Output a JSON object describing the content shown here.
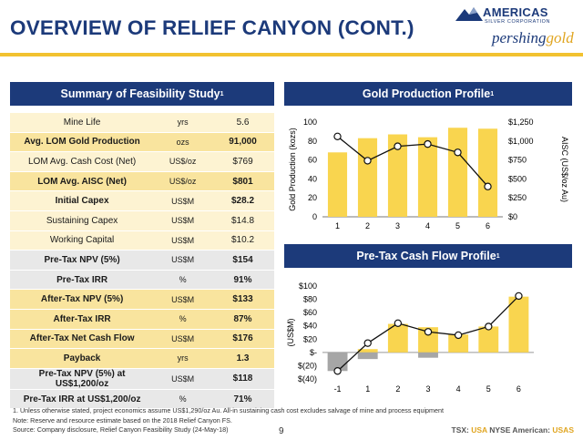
{
  "title": "OVERVIEW OF RELIEF CANYON (CONT.)",
  "logo": {
    "line1": "AMERICAS",
    "line2": "SILVER CORPORATION",
    "brand_a": "pershing",
    "brand_b": "gold"
  },
  "summary": {
    "heading": "Summary of Feasibility Study",
    "heading_sup": "1",
    "rows": [
      {
        "label": "Mine Life",
        "unit": "yrs",
        "value": "5.6"
      },
      {
        "label": "Avg. LOM Gold Production",
        "unit": "ozs",
        "value": "91,000"
      },
      {
        "label": "LOM Avg. Cash Cost (Net)",
        "unit": "US$/oz",
        "value": "$769"
      },
      {
        "label": "LOM Avg. AISC (Net)",
        "unit": "US$/oz",
        "value": "$801"
      },
      {
        "label": "Initial Capex",
        "unit": "US$M",
        "value": "$28.2"
      },
      {
        "label": "Sustaining Capex",
        "unit": "US$M",
        "value": "$14.8"
      },
      {
        "label": "Working Capital",
        "unit": "US$M",
        "value": "$10.2"
      },
      {
        "label": "Pre-Tax NPV (5%)",
        "unit": "US$M",
        "value": "$154"
      },
      {
        "label": "Pre-Tax IRR",
        "unit": "%",
        "value": "91%"
      },
      {
        "label": "After-Tax NPV (5%)",
        "unit": "US$M",
        "value": "$133"
      },
      {
        "label": "After-Tax IRR",
        "unit": "%",
        "value": "87%"
      },
      {
        "label": "After-Tax Net Cash Flow",
        "unit": "US$M",
        "value": "$176"
      },
      {
        "label": "Payback",
        "unit": "yrs",
        "value": "1.3"
      },
      {
        "label": "Pre-Tax NPV (5%) at US$1,200/oz",
        "unit": "US$M",
        "value": "$118"
      },
      {
        "label": "Pre-Tax IRR at US$1,200/oz",
        "unit": "%",
        "value": "71%"
      }
    ]
  },
  "gold_panel": {
    "heading": "Gold Production Profile",
    "heading_sup": "1"
  },
  "cash_panel": {
    "heading": "Pre-Tax Cash Flow Profile",
    "heading_sup": "1"
  },
  "chart_data": [
    {
      "type": "bar",
      "categories": [
        "1",
        "2",
        "3",
        "4",
        "5",
        "6"
      ],
      "series": [
        {
          "values": [
            68,
            83,
            87,
            84,
            94,
            93
          ],
          "color": "#f9d54f"
        },
        {
          "values": [
            1060,
            740,
            930,
            960,
            850,
            400
          ],
          "color": "#111111",
          "kind": "line",
          "axis": "right"
        }
      ],
      "ylabel": "Gold Production (kozs)",
      "ylabel_right": "AISC (US$/oz Au)",
      "ylim": [
        0,
        100
      ],
      "yticks": [
        "0",
        "20",
        "40",
        "60",
        "80",
        "100"
      ],
      "ylim_right": [
        0,
        1250
      ],
      "yticks_right": [
        "$0",
        "$250",
        "$500",
        "$750",
        "$1,000",
        "$1,250"
      ],
      "grid": false
    },
    {
      "type": "bar",
      "categories": [
        "-1",
        "1",
        "2",
        "3",
        "4",
        "5",
        "6"
      ],
      "series": [
        {
          "values": [
            -28,
            5,
            43,
            38,
            27,
            39,
            84
          ],
          "color": "#f9d54f",
          "stacked_negative": [
            0,
            -10,
            0,
            -8,
            0,
            0,
            0
          ],
          "negative_color": "#a6a6a6"
        },
        {
          "values": [
            -28,
            14,
            44,
            31,
            26,
            39,
            85
          ],
          "color": "#111111",
          "kind": "line"
        }
      ],
      "ylabel": "(US$M)",
      "ylim": [
        -40,
        100
      ],
      "yticks": [
        "$(40)",
        "$(20)",
        "$-",
        "$20",
        "$40",
        "$60",
        "$80",
        "$100"
      ],
      "grid": false
    }
  ],
  "footnotes": {
    "note1": "1. Unless otherwise stated, project economics assume US$1,290/oz Au.  All-in sustaining cash cost excludes salvage of mine and process equipment",
    "note2": "Note: Reserve and resource estimate based on the 2018 Relief Canyon FS.",
    "note3": "Source: Company disclosure, Relief Canyon Feasibility Study (24-May-18)"
  },
  "page_number": "9",
  "ticker": {
    "tsx_label": "TSX: ",
    "tsx": "USA",
    "nyse_label": "  NYSE American: ",
    "nyse": "USAS"
  }
}
